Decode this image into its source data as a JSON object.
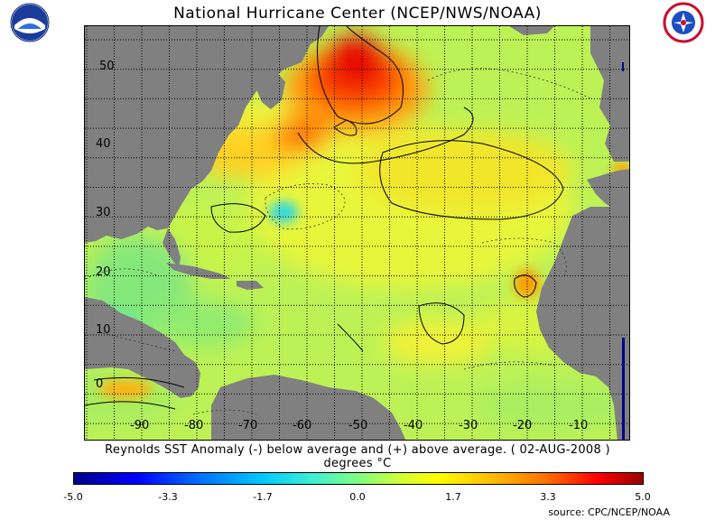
{
  "title": "National Hurricane Center (NCEP/NWS/NOAA)",
  "logos": {
    "left": "noaa-logo",
    "right": "national-weather-service-logo"
  },
  "map": {
    "lat_ticks": [
      "50",
      "40",
      "30",
      "20",
      "10",
      "0"
    ],
    "lon_ticks": [
      "-90",
      "-80",
      "-70",
      "-60",
      "-50",
      "-40",
      "-30",
      "-20",
      "-10"
    ],
    "colors": {
      "land": "#808080",
      "grid": "#000000",
      "neutral_anomaly": "#b8f060",
      "warm_anomaly": "#ff1a00",
      "cool_anomaly": "#40e0d0"
    }
  },
  "caption": {
    "line1": "Reynolds SST Anomaly (-) below average and (+) above average. ( 02-AUG-2008 )",
    "line2": "degrees °C"
  },
  "colorbar": {
    "ticks": [
      "-5.0",
      "-3.3",
      "-1.7",
      "0.0",
      "1.7",
      "3.3",
      "5.0"
    ]
  },
  "source": "source:  CPC/NCEP/NOAA"
}
